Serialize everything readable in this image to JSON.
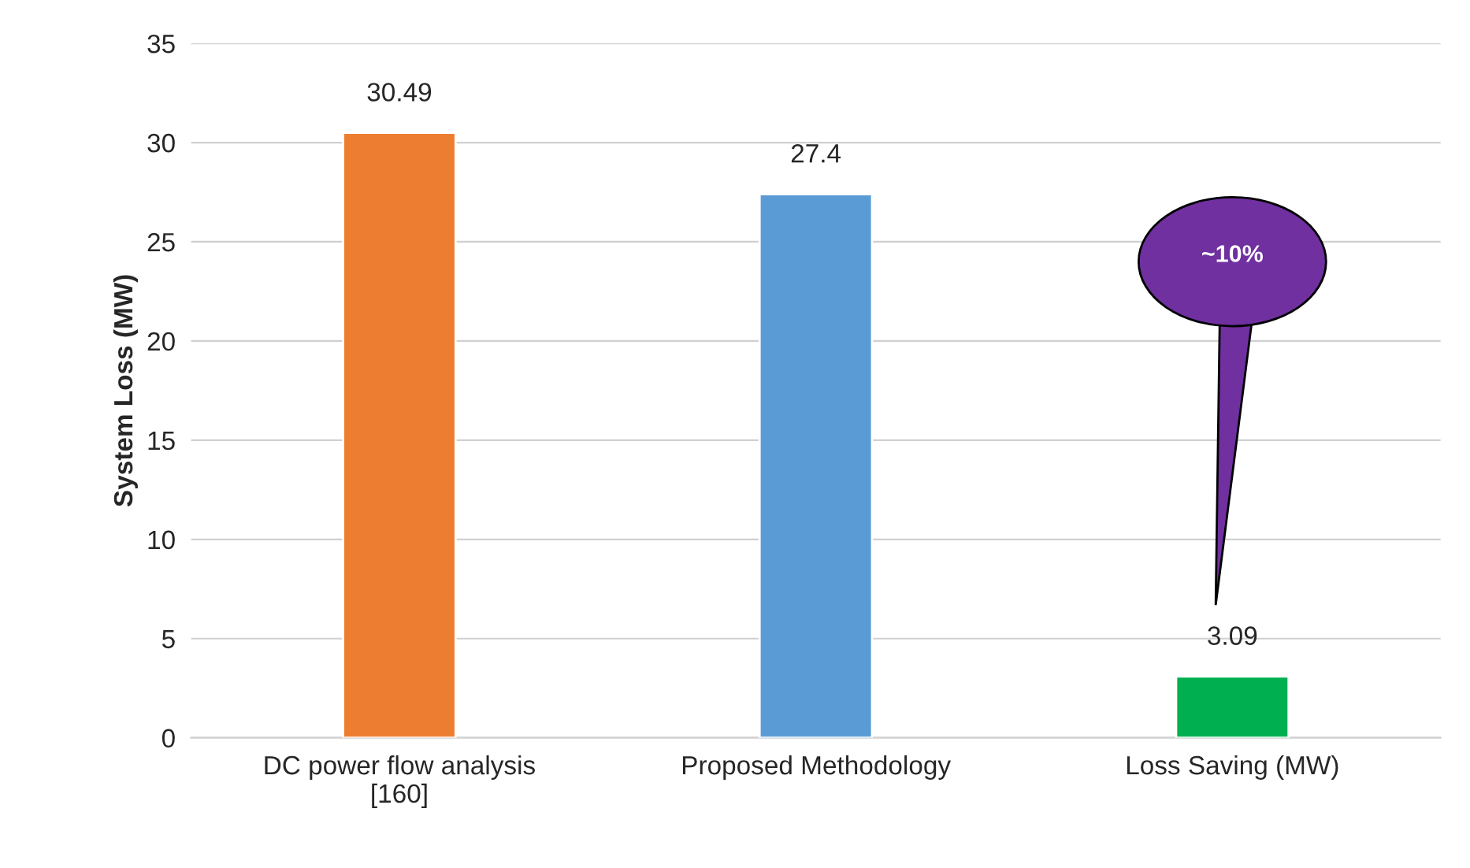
{
  "chart_data": {
    "type": "bar",
    "categories": [
      "DC power flow analysis\n[160]",
      "Proposed Methodology",
      "Loss Saving (MW)"
    ],
    "values": [
      30.49,
      27.4,
      3.09
    ],
    "colors": [
      "#ed7d31",
      "#5b9bd5",
      "#00b050"
    ],
    "ylabel": "System Loss (MW)",
    "ylim": [
      0,
      35
    ],
    "yticks": [
      0,
      5,
      10,
      15,
      20,
      25,
      30,
      35
    ],
    "grid": "y",
    "data_labels": true,
    "annotations": [
      "~10%"
    ]
  }
}
